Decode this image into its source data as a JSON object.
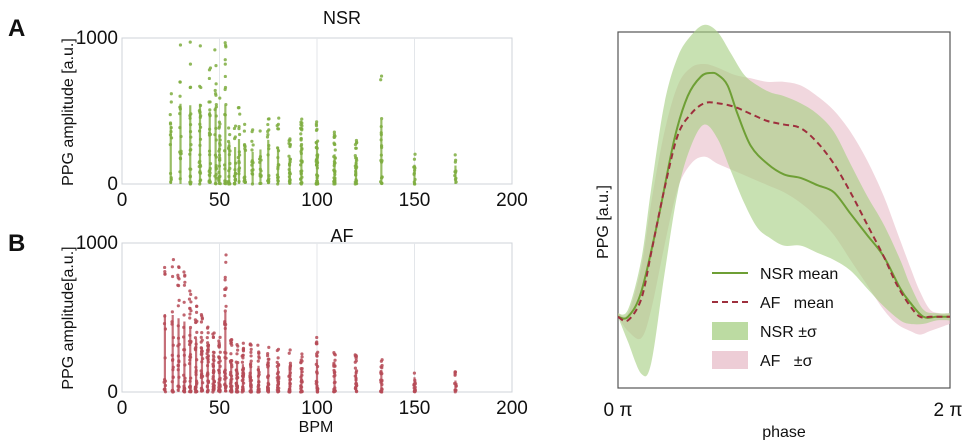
{
  "figure": {
    "panel_a_letter": "A",
    "panel_b_letter": "B"
  },
  "chart_data": [
    {
      "type": "scatter",
      "title": "NSR",
      "xlabel": "",
      "ylabel": "PPG amplitude [a.u.]",
      "xlim": [
        0,
        200
      ],
      "ylim": [
        0,
        1000
      ],
      "x_ticks": [
        "0",
        "50",
        "100",
        "150",
        "200"
      ],
      "y_ticks": [
        "0",
        "1000"
      ],
      "grid": true,
      "color": "#7ead3f",
      "series": [
        {
          "columns": [
            {
              "x": 25,
              "max": 720,
              "count": 14
            },
            {
              "x": 30,
              "max": 1000,
              "count": 18
            },
            {
              "x": 35,
              "max": 980,
              "count": 22
            },
            {
              "x": 40,
              "max": 1000,
              "count": 26
            },
            {
              "x": 45,
              "max": 900,
              "count": 26
            },
            {
              "x": 48,
              "max": 960,
              "count": 24
            },
            {
              "x": 50,
              "max": 620,
              "count": 24
            },
            {
              "x": 53,
              "max": 980,
              "count": 18
            },
            {
              "x": 55,
              "max": 520,
              "count": 18
            },
            {
              "x": 58,
              "max": 460,
              "count": 16
            },
            {
              "x": 60,
              "max": 560,
              "count": 16
            },
            {
              "x": 63,
              "max": 440,
              "count": 14
            },
            {
              "x": 67,
              "max": 400,
              "count": 14
            },
            {
              "x": 71,
              "max": 430,
              "count": 14
            },
            {
              "x": 75,
              "max": 550,
              "count": 16
            },
            {
              "x": 80,
              "max": 460,
              "count": 18
            },
            {
              "x": 86,
              "max": 320,
              "count": 24
            },
            {
              "x": 92,
              "max": 470,
              "count": 36
            },
            {
              "x": 100,
              "max": 500,
              "count": 46
            },
            {
              "x": 109,
              "max": 370,
              "count": 34
            },
            {
              "x": 120,
              "max": 300,
              "count": 26
            },
            {
              "x": 133,
              "max": 800,
              "count": 20
            },
            {
              "x": 150,
              "max": 240,
              "count": 12
            },
            {
              "x": 171,
              "max": 230,
              "count": 10
            }
          ]
        }
      ]
    },
    {
      "type": "scatter",
      "title": "AF",
      "xlabel": "BPM",
      "ylabel": "PPG amplitude[a.u.]",
      "xlim": [
        0,
        200
      ],
      "ylim": [
        0,
        1000
      ],
      "x_ticks": [
        "0",
        "50",
        "100",
        "150",
        "200"
      ],
      "y_ticks": [
        "0",
        "1000"
      ],
      "grid": true,
      "color": "#b64b57",
      "series": [
        {
          "columns": [
            {
              "x": 22,
              "max": 950,
              "count": 16
            },
            {
              "x": 26,
              "max": 940,
              "count": 20
            },
            {
              "x": 29,
              "max": 900,
              "count": 24
            },
            {
              "x": 32,
              "max": 860,
              "count": 26
            },
            {
              "x": 35,
              "max": 780,
              "count": 30
            },
            {
              "x": 38,
              "max": 650,
              "count": 32
            },
            {
              "x": 41,
              "max": 520,
              "count": 34
            },
            {
              "x": 44,
              "max": 440,
              "count": 36
            },
            {
              "x": 47,
              "max": 400,
              "count": 36
            },
            {
              "x": 50,
              "max": 380,
              "count": 36
            },
            {
              "x": 53,
              "max": 980,
              "count": 34
            },
            {
              "x": 56,
              "max": 370,
              "count": 34
            },
            {
              "x": 59,
              "max": 350,
              "count": 32
            },
            {
              "x": 62,
              "max": 340,
              "count": 32
            },
            {
              "x": 66,
              "max": 330,
              "count": 30
            },
            {
              "x": 70,
              "max": 320,
              "count": 30
            },
            {
              "x": 75,
              "max": 310,
              "count": 28
            },
            {
              "x": 80,
              "max": 300,
              "count": 28
            },
            {
              "x": 86,
              "max": 290,
              "count": 26
            },
            {
              "x": 92,
              "max": 280,
              "count": 26
            },
            {
              "x": 100,
              "max": 400,
              "count": 26
            },
            {
              "x": 109,
              "max": 270,
              "count": 24
            },
            {
              "x": 120,
              "max": 260,
              "count": 22
            },
            {
              "x": 133,
              "max": 230,
              "count": 20
            },
            {
              "x": 150,
              "max": 180,
              "count": 16
            },
            {
              "x": 171,
              "max": 140,
              "count": 14
            }
          ]
        }
      ]
    },
    {
      "type": "line",
      "title": "",
      "xlabel": "phase",
      "ylabel": "PPG [a.u.]",
      "x_tick_labels": [
        "0 π",
        "2 π"
      ],
      "xlim": [
        0,
        1
      ],
      "ylim": [
        0,
        1
      ],
      "legend_position": "bottom-center",
      "series": [
        {
          "name": "NSR mean",
          "style": "solid",
          "color": "#6e9f35",
          "x": [
            0,
            0.03,
            0.07,
            0.12,
            0.17,
            0.21,
            0.25,
            0.28,
            0.3,
            0.33,
            0.36,
            0.4,
            0.45,
            0.5,
            0.55,
            0.6,
            0.65,
            0.7,
            0.75,
            0.8,
            0.85,
            0.88,
            0.92,
            0.96,
            1.0
          ],
          "y": [
            0.2,
            0.2,
            0.27,
            0.47,
            0.7,
            0.82,
            0.875,
            0.885,
            0.88,
            0.85,
            0.77,
            0.68,
            0.63,
            0.6,
            0.59,
            0.57,
            0.55,
            0.49,
            0.43,
            0.37,
            0.28,
            0.24,
            0.2,
            0.2,
            0.2
          ]
        },
        {
          "name": "AF   mean",
          "style": "dashed",
          "color": "#9e2f3d",
          "x": [
            0,
            0.03,
            0.07,
            0.1,
            0.14,
            0.18,
            0.22,
            0.26,
            0.3,
            0.35,
            0.4,
            0.45,
            0.5,
            0.55,
            0.6,
            0.65,
            0.7,
            0.75,
            0.8,
            0.84,
            0.88,
            0.91,
            0.94,
            0.97,
            1.0
          ],
          "y": [
            0.2,
            0.19,
            0.25,
            0.38,
            0.56,
            0.71,
            0.77,
            0.8,
            0.8,
            0.79,
            0.77,
            0.75,
            0.74,
            0.73,
            0.69,
            0.63,
            0.55,
            0.46,
            0.37,
            0.29,
            0.23,
            0.2,
            0.2,
            0.2,
            0.2
          ]
        },
        {
          "name": "NSR ±σ",
          "style": "band",
          "color": "#a6cf83",
          "x": [
            0,
            0.03,
            0.07,
            0.1,
            0.14,
            0.18,
            0.22,
            0.26,
            0.3,
            0.34,
            0.38,
            0.42,
            0.46,
            0.5,
            0.55,
            0.6,
            0.65,
            0.7,
            0.75,
            0.8,
            0.85,
            0.88,
            0.92,
            0.96,
            1.0
          ],
          "upper": [
            0.21,
            0.22,
            0.36,
            0.56,
            0.8,
            0.93,
            0.99,
            1.02,
            1.0,
            0.94,
            0.88,
            0.85,
            0.83,
            0.82,
            0.8,
            0.77,
            0.72,
            0.63,
            0.54,
            0.46,
            0.36,
            0.29,
            0.22,
            0.21,
            0.21
          ],
          "lower": [
            0.2,
            0.13,
            0.04,
            0.07,
            0.32,
            0.55,
            0.68,
            0.74,
            0.7,
            0.61,
            0.52,
            0.45,
            0.42,
            0.4,
            0.4,
            0.38,
            0.36,
            0.33,
            0.28,
            0.23,
            0.19,
            0.18,
            0.18,
            0.19,
            0.19
          ]
        },
        {
          "name": "AF   ±σ",
          "style": "band",
          "color": "#e7bcc8",
          "x": [
            0,
            0.03,
            0.07,
            0.1,
            0.14,
            0.18,
            0.22,
            0.26,
            0.3,
            0.35,
            0.4,
            0.45,
            0.5,
            0.55,
            0.6,
            0.65,
            0.7,
            0.75,
            0.8,
            0.84,
            0.88,
            0.91,
            0.94,
            0.97,
            1.0
          ],
          "upper": [
            0.21,
            0.21,
            0.34,
            0.52,
            0.72,
            0.85,
            0.9,
            0.91,
            0.9,
            0.88,
            0.87,
            0.86,
            0.86,
            0.85,
            0.82,
            0.78,
            0.72,
            0.64,
            0.54,
            0.44,
            0.34,
            0.27,
            0.22,
            0.21,
            0.21
          ],
          "lower": [
            0.2,
            0.16,
            0.14,
            0.22,
            0.4,
            0.56,
            0.63,
            0.65,
            0.63,
            0.61,
            0.59,
            0.57,
            0.55,
            0.52,
            0.48,
            0.43,
            0.36,
            0.29,
            0.22,
            0.18,
            0.16,
            0.15,
            0.16,
            0.17,
            0.18
          ]
        }
      ]
    }
  ]
}
